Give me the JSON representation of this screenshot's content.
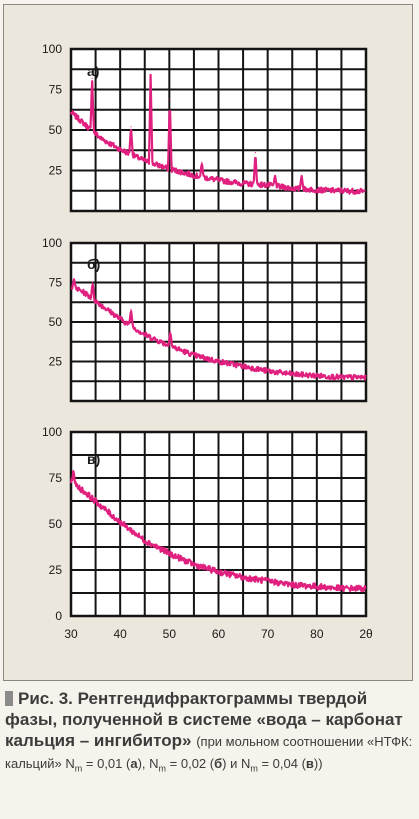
{
  "chart_data": {
    "type": "line",
    "x_axis_label": "2θ",
    "x_ticks": [
      "30",
      "40",
      "50",
      "60",
      "70",
      "80"
    ],
    "xlim": [
      30,
      90
    ],
    "series_color": "#e0207f",
    "grid": true,
    "panels": [
      {
        "label": "а)",
        "ylim": [
          0,
          100
        ],
        "y_ticks": [
          "100",
          "75",
          "50",
          "25"
        ],
        "background": [
          [
            30,
            61
          ],
          [
            33,
            53
          ],
          [
            36,
            45
          ],
          [
            40,
            38
          ],
          [
            45,
            31
          ],
          [
            50,
            26
          ],
          [
            55,
            22
          ],
          [
            60,
            19
          ],
          [
            65,
            17
          ],
          [
            70,
            16
          ],
          [
            75,
            14
          ],
          [
            80,
            13
          ],
          [
            85,
            12.5
          ],
          [
            90,
            12
          ]
        ],
        "peaks": [
          [
            34.3,
            82
          ],
          [
            42.2,
            52
          ],
          [
            46.2,
            84
          ],
          [
            50.1,
            69
          ],
          [
            56.6,
            30
          ],
          [
            67.5,
            36
          ],
          [
            71.5,
            22
          ],
          [
            76.9,
            22
          ]
        ]
      },
      {
        "label": "б)",
        "ylim": [
          0,
          100
        ],
        "y_ticks": [
          "100",
          "75",
          "50",
          "25"
        ],
        "background": [
          [
            30,
            73
          ],
          [
            33,
            68
          ],
          [
            36,
            61
          ],
          [
            40,
            52
          ],
          [
            45,
            42
          ],
          [
            50,
            35
          ],
          [
            55,
            29
          ],
          [
            60,
            25
          ],
          [
            65,
            22
          ],
          [
            70,
            19
          ],
          [
            75,
            17
          ],
          [
            80,
            16
          ],
          [
            85,
            15
          ],
          [
            90,
            15
          ]
        ],
        "peaks": [
          [
            30.6,
            77
          ],
          [
            34.4,
            75
          ],
          [
            42.2,
            58
          ],
          [
            50.2,
            44
          ]
        ]
      },
      {
        "label": "в)",
        "ylim": [
          0,
          100
        ],
        "y_ticks": [
          "100",
          "75",
          "50",
          "25",
          "0"
        ],
        "background": [
          [
            30,
            73
          ],
          [
            33,
            67
          ],
          [
            36,
            60
          ],
          [
            40,
            51
          ],
          [
            45,
            41
          ],
          [
            50,
            34
          ],
          [
            55,
            28
          ],
          [
            60,
            24
          ],
          [
            65,
            21
          ],
          [
            70,
            19
          ],
          [
            75,
            17
          ],
          [
            80,
            16
          ],
          [
            85,
            15
          ],
          [
            90,
            15
          ]
        ],
        "peaks": [
          [
            30.5,
            79
          ]
        ]
      }
    ]
  },
  "caption": {
    "main": "Рис. 3. Рентгендифрактограммы твердой фазы, полученной в системе «вода – карбонат кальция – ингибитор»",
    "note_1": "(при мольном соотношении «НТФК: кальций» N",
    "sub_m": "m",
    "eq_01": "= 0,01 (",
    "label_a": "а",
    "sep_1": "), N",
    "eq_02": "= 0,02 (",
    "label_b": "б",
    "sep_2": ") и N",
    "eq_04": "= 0,04 (",
    "label_v": "в",
    "end": "))"
  }
}
